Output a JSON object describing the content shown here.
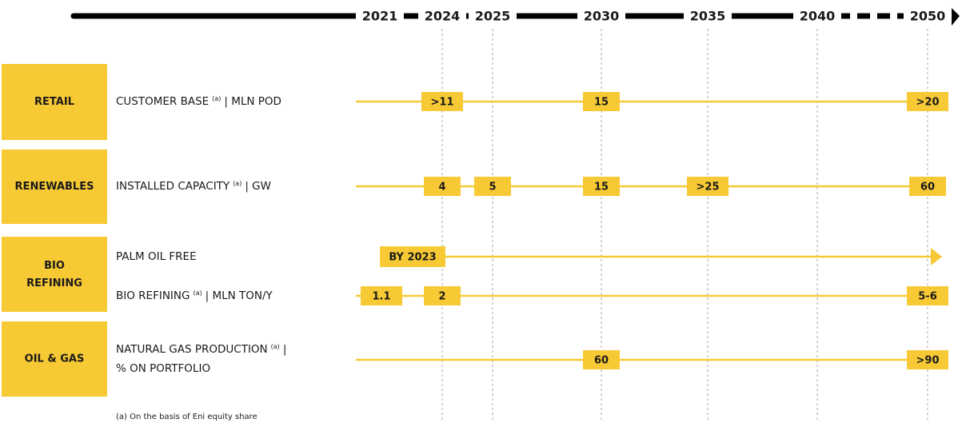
{
  "timeline": {
    "years": [
      "2021",
      "2024",
      "2025",
      "2030",
      "2035",
      "2040",
      "2050"
    ]
  },
  "sections": [
    {
      "name": "RETAIL",
      "metrics": [
        {
          "label": "CUSTOMER BASE",
          "note": "(a)",
          "unit": "| MLN POD",
          "values": [
            null,
            ">11",
            null,
            15,
            null,
            null,
            ">20"
          ]
        }
      ]
    },
    {
      "name": "RENEWABLES",
      "metrics": [
        {
          "label": "INSTALLED CAPACITY",
          "note": "(a)",
          "unit": "| GW",
          "values": [
            null,
            4,
            5,
            15,
            ">25",
            null,
            60
          ]
        }
      ]
    },
    {
      "name": "BIO REFINING",
      "metrics": [
        {
          "label": "PALM OIL FREE",
          "milestone": "BY 2023"
        },
        {
          "label": "BIO REFINING",
          "note": "(a)",
          "unit": "| MLN TON/Y",
          "values": [
            1.1,
            2,
            null,
            null,
            null,
            null,
            "5-6"
          ]
        }
      ]
    },
    {
      "name": "OIL & GAS",
      "metrics": [
        {
          "label": "NATURAL GAS PRODUCTION",
          "note": "(a)",
          "unit": "|",
          "unit_line2": "% ON PORTFOLIO",
          "values": [
            null,
            null,
            null,
            60,
            null,
            null,
            ">90"
          ]
        }
      ]
    }
  ],
  "footnote": "(a) On the basis of Eni equity share"
}
